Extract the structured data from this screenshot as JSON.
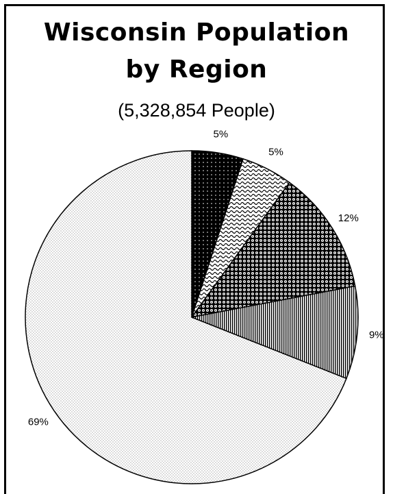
{
  "chart_data": {
    "type": "pie",
    "title_lines": [
      "Wisconsin Population",
      "by Region"
    ],
    "subtitle": "(5,328,854 People)",
    "slices": [
      {
        "value": 5,
        "label": "5%",
        "pattern": "solid-dots"
      },
      {
        "value": 5,
        "label": "5%",
        "pattern": "waves"
      },
      {
        "value": 12,
        "label": "12%",
        "pattern": "dark-dots"
      },
      {
        "value": 9,
        "label": "9%",
        "pattern": "vertical-lines"
      },
      {
        "value": 69,
        "label": "69%",
        "pattern": "light-dots"
      }
    ]
  }
}
